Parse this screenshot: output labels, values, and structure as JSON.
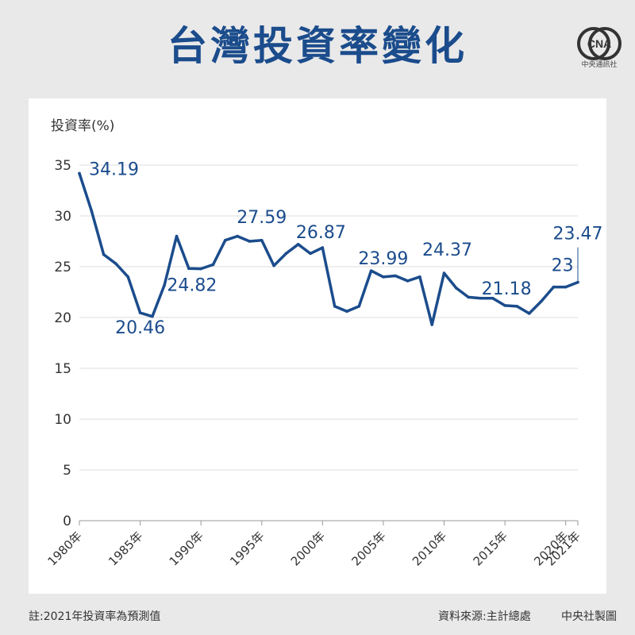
{
  "title": "台灣投資率變化",
  "logo_text": "CNA",
  "logo_name": "中央通訊社",
  "footer": {
    "note": "註:2021年投資率為預測值",
    "source": "資料來源:主計總處",
    "credit": "中央社製圖"
  },
  "colors": {
    "line": "#1b4c8c",
    "title": "#1b4c8c",
    "label": "#1b4c8c"
  },
  "chart_data": {
    "type": "line",
    "ylabel": "投資率(%)",
    "ylim": [
      0,
      35
    ],
    "yticks": [
      0,
      5,
      10,
      15,
      20,
      25,
      30,
      35
    ],
    "grid": true,
    "x": [
      1980,
      1981,
      1982,
      1983,
      1984,
      1985,
      1986,
      1987,
      1988,
      1989,
      1990,
      1991,
      1992,
      1993,
      1994,
      1995,
      1996,
      1997,
      1998,
      1999,
      2000,
      2001,
      2002,
      2003,
      2004,
      2005,
      2006,
      2007,
      2008,
      2009,
      2010,
      2011,
      2012,
      2013,
      2014,
      2015,
      2016,
      2017,
      2018,
      2019,
      2020,
      2021
    ],
    "xtick_labels": [
      {
        "x": 1980,
        "label": "1980年"
      },
      {
        "x": 1985,
        "label": "1985年"
      },
      {
        "x": 1990,
        "label": "1990年"
      },
      {
        "x": 1995,
        "label": "1995年"
      },
      {
        "x": 2000,
        "label": "2000年"
      },
      {
        "x": 2005,
        "label": "2005年"
      },
      {
        "x": 2010,
        "label": "2010年"
      },
      {
        "x": 2015,
        "label": "2015年"
      },
      {
        "x": 2020,
        "label": "2020年"
      },
      {
        "x": 2021,
        "label": "2021年"
      }
    ],
    "series": [
      {
        "values": [
          34.19,
          30.5,
          26.2,
          25.3,
          24.0,
          20.46,
          20.1,
          23.2,
          28.0,
          24.82,
          24.8,
          25.2,
          27.6,
          28.0,
          27.5,
          27.59,
          25.1,
          26.3,
          27.2,
          26.3,
          26.87,
          21.1,
          20.6,
          21.1,
          24.6,
          23.99,
          24.1,
          23.6,
          24.0,
          19.3,
          24.37,
          22.9,
          22.0,
          21.9,
          21.9,
          21.18,
          21.1,
          20.4,
          21.6,
          23.0,
          23.0,
          23.47
        ]
      }
    ],
    "data_labels": [
      {
        "x": 1980,
        "text": "34.19"
      },
      {
        "x": 1985,
        "text": "20.46"
      },
      {
        "x": 1989,
        "text": "24.82"
      },
      {
        "x": 1995,
        "text": "27.59"
      },
      {
        "x": 2000,
        "text": "26.87"
      },
      {
        "x": 2005,
        "text": "23.99"
      },
      {
        "x": 2010,
        "text": "24.37"
      },
      {
        "x": 2015,
        "text": "21.18"
      },
      {
        "x": 2020,
        "text": "23"
      },
      {
        "x": 2021,
        "text": "23.47"
      }
    ]
  }
}
